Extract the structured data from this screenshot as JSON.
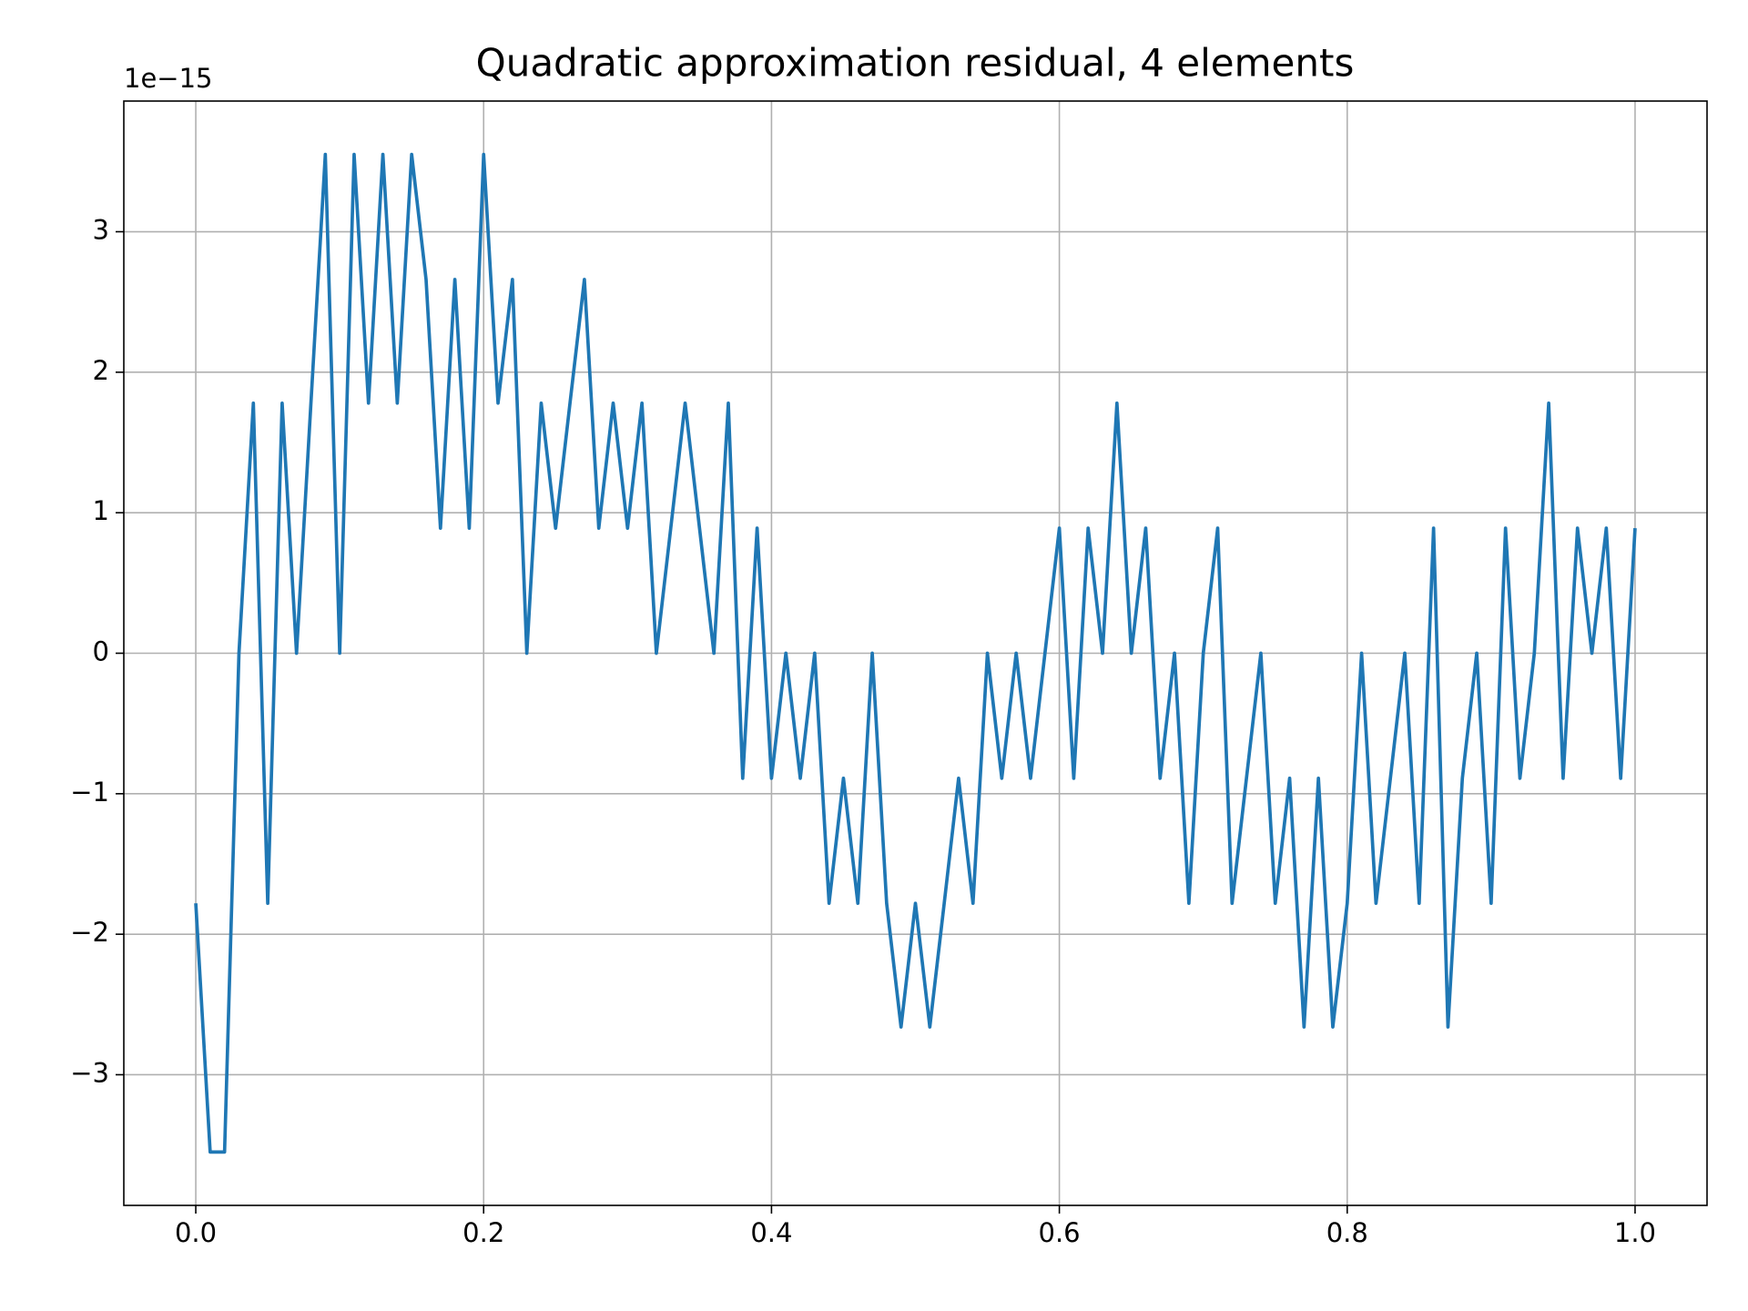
{
  "chart_data": {
    "type": "line",
    "title": "Quadratic approximation residual, 4 elements",
    "offset_label": "1e−15",
    "x": [
      0,
      0.01,
      0.02,
      0.03,
      0.04,
      0.05,
      0.06,
      0.07,
      0.08,
      0.09,
      0.1,
      0.11,
      0.12,
      0.13,
      0.14,
      0.15,
      0.16,
      0.17,
      0.18,
      0.19,
      0.2,
      0.21,
      0.22,
      0.23,
      0.24,
      0.25,
      0.26,
      0.27,
      0.28,
      0.29,
      0.3,
      0.31,
      0.32,
      0.33,
      0.34,
      0.35,
      0.36,
      0.37,
      0.38,
      0.39,
      0.4,
      0.41,
      0.42,
      0.43,
      0.44,
      0.45,
      0.46,
      0.47,
      0.48,
      0.49,
      0.5,
      0.51,
      0.52,
      0.53,
      0.54,
      0.55,
      0.56,
      0.57,
      0.58,
      0.59,
      0.6,
      0.61,
      0.62,
      0.63,
      0.64,
      0.65,
      0.66,
      0.67,
      0.68,
      0.69,
      0.7,
      0.71,
      0.72,
      0.73,
      0.74,
      0.75,
      0.76,
      0.77,
      0.78,
      0.79,
      0.8,
      0.81,
      0.82,
      0.83,
      0.84,
      0.85,
      0.86,
      0.87,
      0.88,
      0.89,
      0.9,
      0.91,
      0.92,
      0.93,
      0.94,
      0.95,
      0.96,
      0.97,
      0.98,
      0.99,
      1.0
    ],
    "series": [
      {
        "color": "#1f77b4",
        "values": [
          -1.78,
          -3.55,
          -3.55,
          0,
          1.78,
          -1.78,
          1.78,
          0,
          1.78,
          3.55,
          0,
          3.55,
          1.78,
          3.55,
          1.78,
          3.55,
          2.66,
          0.89,
          2.66,
          0.89,
          3.55,
          1.78,
          2.66,
          0,
          1.78,
          0.89,
          1.78,
          2.66,
          0.89,
          1.78,
          0.89,
          1.78,
          0,
          0.89,
          1.78,
          0.89,
          0,
          1.78,
          -0.89,
          0.89,
          -0.89,
          0,
          -0.89,
          0,
          -1.78,
          -0.89,
          -1.78,
          0,
          -1.78,
          -2.66,
          -1.78,
          -2.66,
          -1.78,
          -0.89,
          -1.78,
          0,
          -0.89,
          0,
          -0.89,
          0,
          0.89,
          -0.89,
          0.89,
          0,
          1.78,
          0,
          0.89,
          -0.89,
          0,
          -1.78,
          0,
          0.89,
          -1.78,
          -0.89,
          0,
          -1.78,
          -0.89,
          -2.66,
          -0.89,
          -2.66,
          -1.78,
          0,
          -1.78,
          -0.89,
          0,
          -1.78,
          0.89,
          -2.66,
          -0.89,
          0,
          -1.78,
          0.89,
          -0.89,
          0,
          1.78,
          -0.89,
          0.89,
          0,
          0.89,
          -0.89,
          0.89
        ]
      }
    ],
    "xlim": [
      -0.05,
      1.05
    ],
    "ylim": [
      -3.93,
      3.93
    ],
    "xticks": [
      {
        "value": 0,
        "label": "0.0"
      },
      0.2,
      0.4,
      0.6,
      0.8,
      {
        "value": 1,
        "label": "1.0"
      }
    ],
    "yticks": [
      {
        "value": -3,
        "label": "−3"
      },
      {
        "value": -2,
        "label": "−2"
      },
      {
        "value": -1,
        "label": "−1"
      },
      0,
      1,
      2,
      3
    ],
    "grid": true
  }
}
